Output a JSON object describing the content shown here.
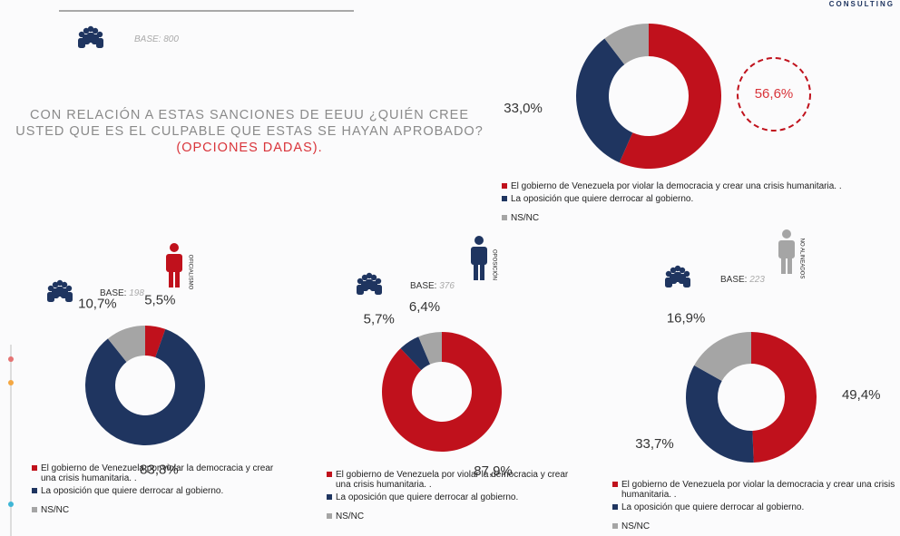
{
  "header": {
    "brand": "CONSULTING",
    "base_label": "BASE:",
    "base": 800,
    "question": "CON RELACIÓN A ESTAS SANCIONES DE EEUU ¿QUIÉN CREE USTED QUE ES EL CULPABLE QUE ESTAS SE HAYAN APROBADO?",
    "question_note": "(OPCIONES DADAS)."
  },
  "chart_data": [
    {
      "type": "donut",
      "categories": [
        "El gobierno de Venezuela por violar la democracia y crear una crisis humanitaria. .",
        "La oposición que quiere derrocar al gobierno.",
        "NS/NC"
      ],
      "values": [
        56.6,
        33.0,
        10.4
      ],
      "value_labels": [
        "56,6%",
        "33,0%",
        "10,4%"
      ],
      "colors": [
        "#c0111c",
        "#1f3560",
        "#a5a5a5"
      ]
    },
    {
      "type": "donut",
      "group": "OFICIALISMO",
      "base_label": "BASE:",
      "base": 198,
      "categories": [
        "El gobierno de Venezuela por violar la democracia y crear una crisis humanitaria. .",
        "La oposición que quiere derrocar al gobierno.",
        "NS/NC"
      ],
      "values": [
        5.5,
        83.8,
        10.7
      ],
      "value_labels": [
        "5,5%",
        "83,8%",
        "10,7%"
      ],
      "colors": [
        "#c0111c",
        "#1f3560",
        "#a5a5a5"
      ]
    },
    {
      "type": "donut",
      "group": "OPOSICIÓN",
      "base_label": "BASE:",
      "base": 376,
      "categories": [
        "El gobierno de Venezuela por violar la democracia y crear una crisis humanitaria. .",
        "La oposición que quiere derrocar al gobierno.",
        "NS/NC"
      ],
      "values": [
        87.9,
        5.7,
        6.4
      ],
      "value_labels": [
        "87,9%",
        "5,7%",
        "6,4%"
      ],
      "colors": [
        "#c0111c",
        "#1f3560",
        "#a5a5a5"
      ]
    },
    {
      "type": "donut",
      "group": "NO ALINEADOS",
      "base_label": "BASE:",
      "base": 223,
      "categories": [
        "El gobierno de Venezuela por violar la democracia y crear una crisis humanitaria. .",
        "La oposición que quiere derrocar al gobierno.",
        "NS/NC"
      ],
      "values": [
        49.4,
        33.7,
        16.9
      ],
      "value_labels": [
        "49,4%",
        "33,7%",
        "16,9%"
      ],
      "colors": [
        "#c0111c",
        "#1f3560",
        "#a5a5a5"
      ]
    }
  ]
}
